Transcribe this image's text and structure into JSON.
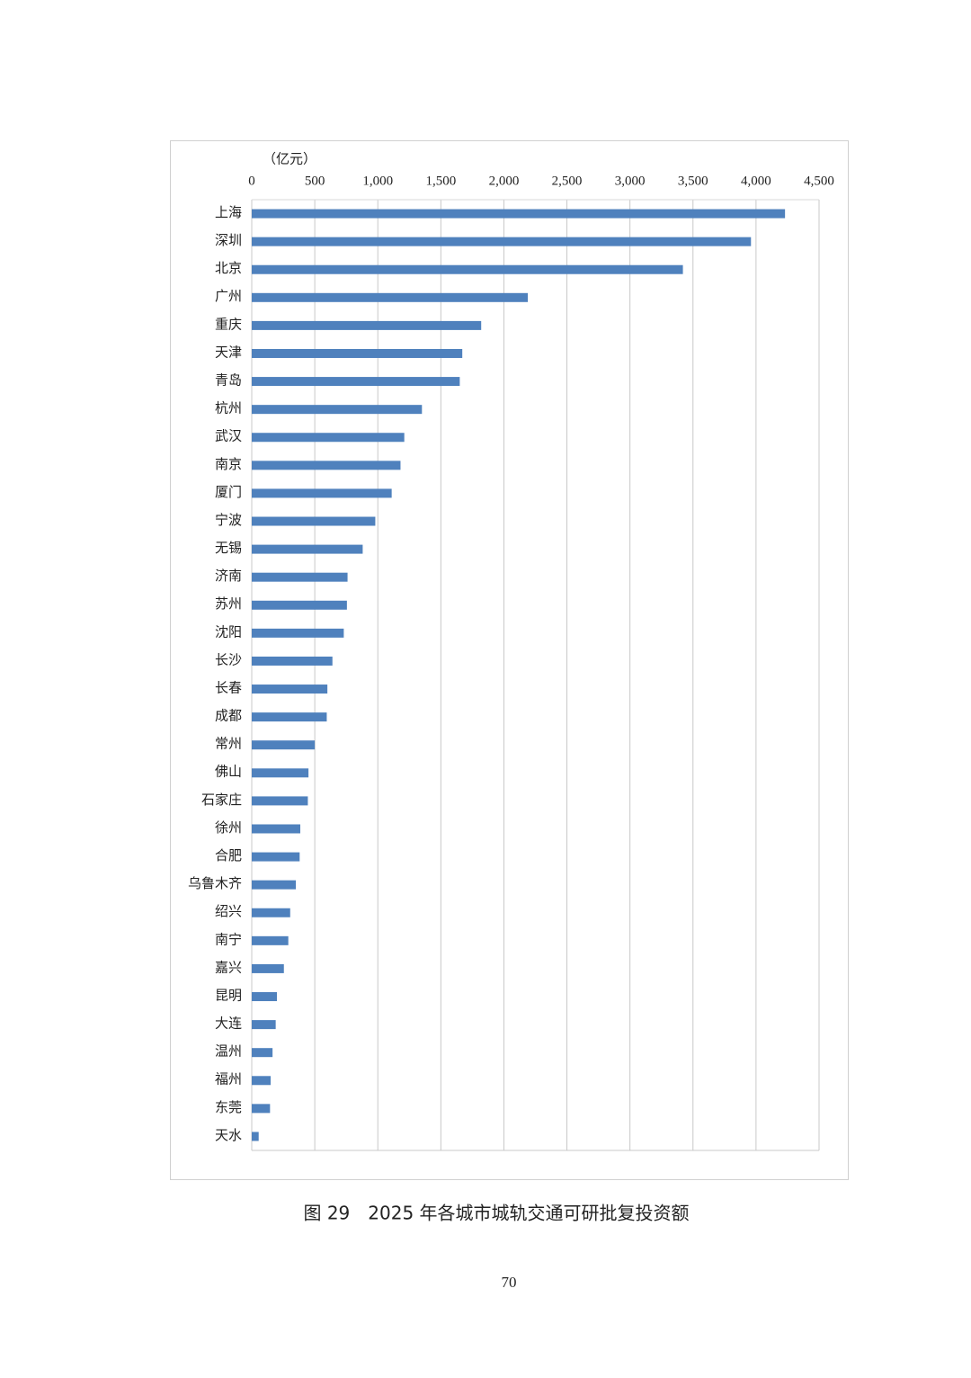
{
  "chart_data": {
    "type": "bar",
    "orientation": "horizontal",
    "unit_label": "（亿元）",
    "categories": [
      "上海",
      "深圳",
      "北京",
      "广州",
      "重庆",
      "天津",
      "青岛",
      "杭州",
      "武汉",
      "南京",
      "厦门",
      "宁波",
      "无锡",
      "济南",
      "苏州",
      "沈阳",
      "长沙",
      "长春",
      "成都",
      "常州",
      "佛山",
      "石家庄",
      "徐州",
      "合肥",
      "乌鲁木齐",
      "绍兴",
      "南宁",
      "嘉兴",
      "昆明",
      "大连",
      "温州",
      "福州",
      "东莞",
      "天水"
    ],
    "values": [
      4230,
      3960,
      3420,
      2190,
      1820,
      1670,
      1650,
      1350,
      1210,
      1180,
      1110,
      980,
      880,
      760,
      755,
      730,
      640,
      600,
      595,
      500,
      450,
      445,
      385,
      380,
      350,
      305,
      290,
      255,
      200,
      190,
      165,
      150,
      145,
      55
    ],
    "color": "#4f81bd",
    "xlim": [
      0,
      4500
    ],
    "xticks": [
      0,
      500,
      {
        "value": 1000,
        "label": "1,000"
      },
      {
        "value": 1500,
        "label": "1,500"
      },
      {
        "value": 2000,
        "label": "2,000"
      },
      {
        "value": 2500,
        "label": "2,500"
      },
      {
        "value": 3000,
        "label": "3,000"
      },
      {
        "value": 3500,
        "label": "3,500"
      },
      {
        "value": 4000,
        "label": "4,000"
      },
      {
        "value": 4500,
        "label": "4,500"
      }
    ],
    "grid": true
  },
  "caption": "图 29　2025 年各城市城轨交通可研批复投资额",
  "page_number": "70"
}
